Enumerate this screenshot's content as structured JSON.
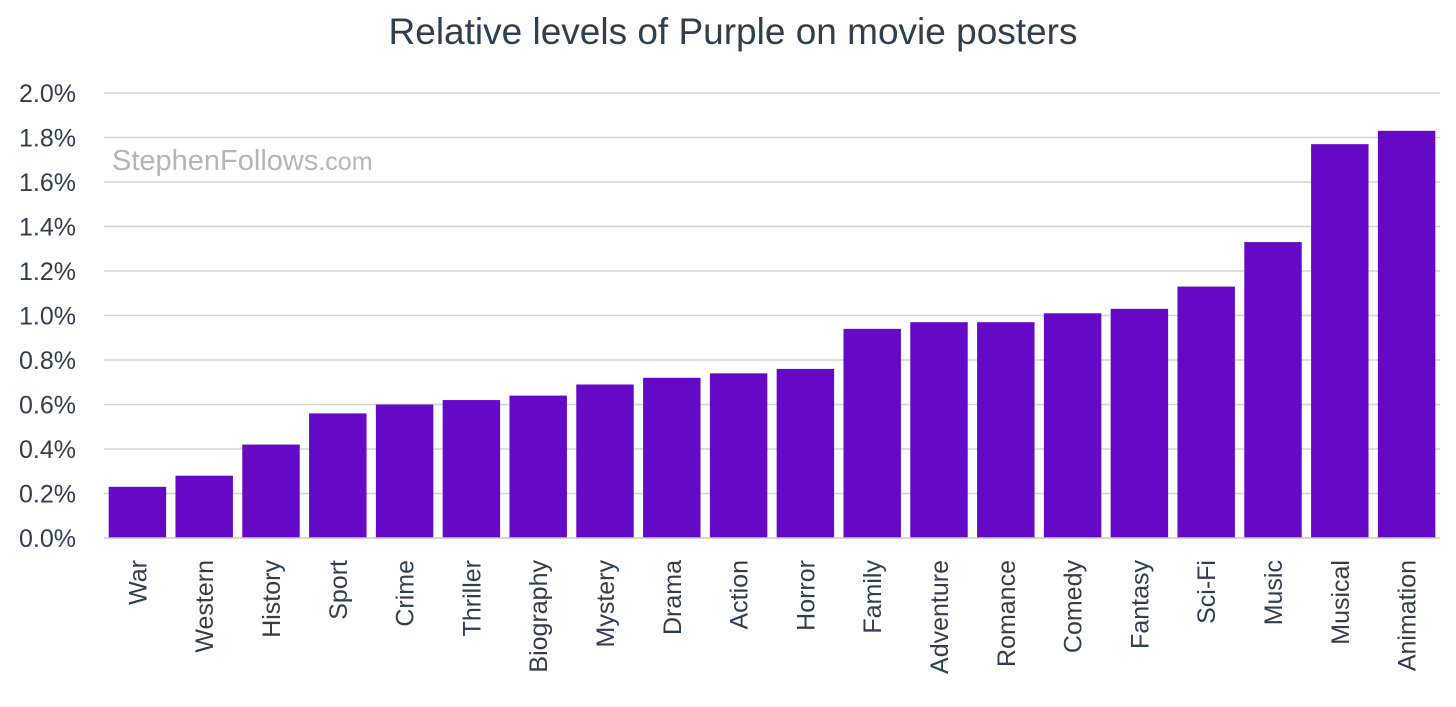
{
  "watermark": {
    "brand": "StephenFollows",
    "suffix": ".com"
  },
  "colors": {
    "bar": "#6609c6",
    "grid": "#d3d3d3",
    "axis": "#c8c8c8",
    "text": "#2e3f50",
    "watermark": "#b5b5b5"
  },
  "chart_data": {
    "type": "bar",
    "title": "Relative levels of Purple on movie posters",
    "xlabel": "",
    "ylabel": "",
    "ylim": [
      0,
      2.0
    ],
    "y_tick_values": [
      0.0,
      0.2,
      0.4,
      0.6,
      0.8,
      1.0,
      1.2,
      1.4,
      1.6,
      1.8,
      2.0
    ],
    "y_tick_labels": [
      "0.0%",
      "0.2%",
      "0.4%",
      "0.6%",
      "0.8%",
      "1.0%",
      "1.2%",
      "1.4%",
      "1.6%",
      "1.8%",
      "2.0%"
    ],
    "y_unit": "%",
    "grid": true,
    "legend": "none",
    "categories": [
      "War",
      "Western",
      "History",
      "Sport",
      "Crime",
      "Thriller",
      "Biography",
      "Mystery",
      "Drama",
      "Action",
      "Horror",
      "Family",
      "Adventure",
      "Romance",
      "Comedy",
      "Fantasy",
      "Sci-Fi",
      "Music",
      "Musical",
      "Animation"
    ],
    "values": [
      0.23,
      0.28,
      0.42,
      0.56,
      0.6,
      0.62,
      0.64,
      0.69,
      0.72,
      0.74,
      0.76,
      0.94,
      0.97,
      0.97,
      1.01,
      1.03,
      1.13,
      1.33,
      1.77,
      1.83
    ]
  }
}
